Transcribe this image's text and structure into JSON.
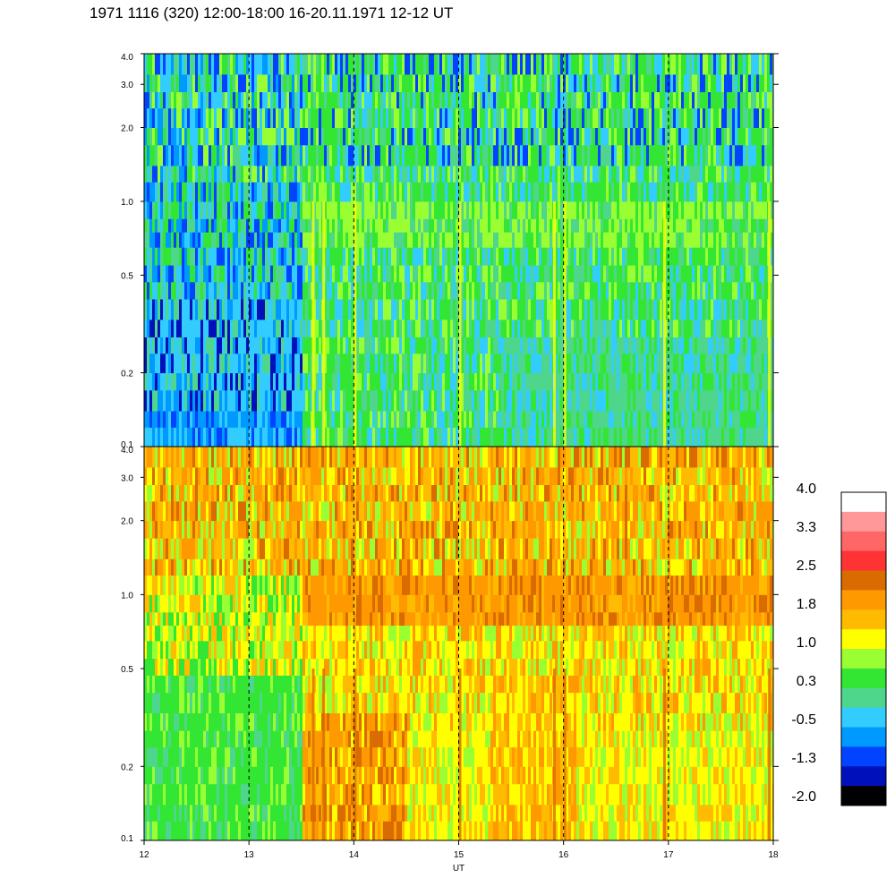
{
  "title": "1971 1116 (320) 12:00-18:00 16-20.11.1971  12-12 UT",
  "chart_data": [
    {
      "type": "heatmap",
      "panel": "upper",
      "x_range": [
        12,
        18
      ],
      "y_range": [
        0.1,
        4.0
      ],
      "y_scale": "log",
      "x_tick_labels": [
        "12",
        "13",
        "14",
        "15",
        "16",
        "17",
        "18"
      ],
      "y_tick_values": [
        0.1,
        0.2,
        0.5,
        1.0,
        2.0,
        3.0,
        4.0
      ],
      "y_tick_labels": [
        "0.1",
        "0.2",
        "0.5",
        "1.0",
        "2.0",
        "3.0",
        "4.0"
      ],
      "hour_markers": [
        13,
        14,
        15,
        16,
        17
      ],
      "description_levels": {
        "before_13_5": -0.9,
        "after_13_5_low_freq": 0.5,
        "high_freq": 0.2
      },
      "bright_streaks": [
        13.6,
        13.7,
        14.0,
        15.0,
        15.9,
        16.0,
        16.95,
        17.95
      ]
    },
    {
      "type": "heatmap",
      "panel": "lower",
      "x_range": [
        12,
        18
      ],
      "y_range": [
        0.1,
        4.0
      ],
      "y_scale": "log",
      "x_tick_labels": [
        "12",
        "13",
        "14",
        "15",
        "16",
        "17",
        "18"
      ],
      "y_tick_values": [
        0.1,
        0.2,
        0.5,
        1.0,
        2.0,
        3.0,
        4.0
      ],
      "y_tick_labels": [
        "0.1",
        "0.2",
        "0.5",
        "1.0",
        "2.0",
        "3.0",
        "4.0"
      ],
      "hour_markers": [
        13,
        14,
        15,
        16,
        17
      ],
      "xlabel": "UT",
      "bright_streaks": [
        13.6,
        13.7,
        14.0,
        15.0,
        15.9,
        16.0,
        16.95,
        17.95
      ]
    }
  ],
  "colorbar": {
    "labels": [
      "4.0",
      "3.3",
      "2.5",
      "1.8",
      "1.0",
      "0.3",
      "-0.5",
      "-1.3",
      "-2.0"
    ],
    "colors": [
      "#ffffff",
      "#ff9999",
      "#ff6666",
      "#ff3333",
      "#d96b00",
      "#ff9900",
      "#ffbb00",
      "#ffff00",
      "#99ff33",
      "#33e633",
      "#4dd68c",
      "#33ccff",
      "#0099ff",
      "#0044ff",
      "#0011bb",
      "#000000"
    ]
  },
  "colors": {
    "dark_blue": "#0011bb",
    "blue": "#0044ff",
    "mid_blue": "#0099ff",
    "cyan": "#33ccff",
    "teal": "#4dd68c",
    "green": "#33e633",
    "lime": "#99ff33",
    "yellow": "#ffff00",
    "gold": "#ffbb00",
    "orange": "#ff9900",
    "dark_orange": "#d96b00",
    "red": "#ff3333"
  }
}
